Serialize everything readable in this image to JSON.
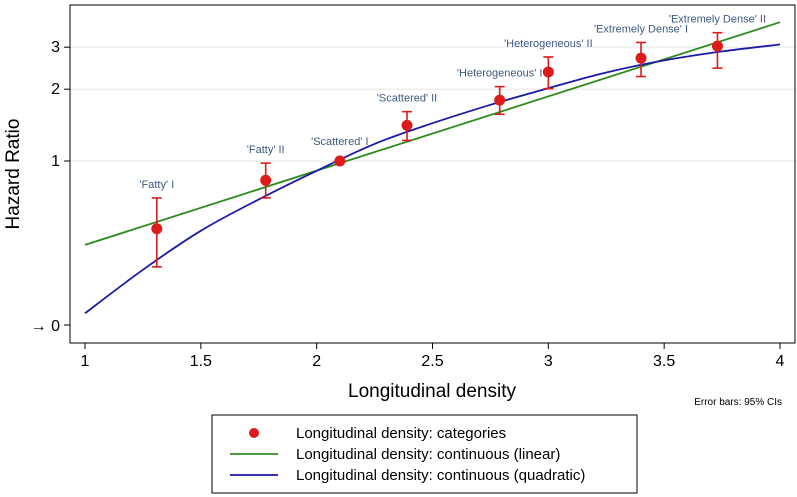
{
  "chart_data": {
    "type": "scatter",
    "xlabel": "Longitudinal density",
    "ylabel": "Hazard Ratio",
    "xlim": [
      1,
      4
    ],
    "x_ticks": [
      1,
      1.5,
      2,
      2.5,
      3,
      3.5,
      4
    ],
    "x_tick_labels": [
      "1",
      "1.5",
      "2",
      "2.5",
      "3",
      "3.5",
      "4"
    ],
    "y_scale": "log",
    "y_ticks": [
      1,
      2,
      3
    ],
    "y_tick_labels": [
      "1",
      "2",
      "3"
    ],
    "y_axis_break_label": "→ 0",
    "grid": "horizontal",
    "note": "Error bars: 95% CIs",
    "points": [
      {
        "label": "'Fatty' I",
        "x": 1.31,
        "y": 0.52,
        "lo": 0.36,
        "hi": 0.7
      },
      {
        "label": "'Fatty' II",
        "x": 1.78,
        "y": 0.83,
        "lo": 0.7,
        "hi": 0.98
      },
      {
        "label": "'Scattered' I",
        "x": 2.1,
        "y": 1.0,
        "lo": 1.0,
        "hi": 1.0
      },
      {
        "label": "'Scattered' II",
        "x": 2.39,
        "y": 1.41,
        "lo": 1.22,
        "hi": 1.61
      },
      {
        "label": "'Heterogeneous' I",
        "x": 2.79,
        "y": 1.8,
        "lo": 1.57,
        "hi": 2.05
      },
      {
        "label": "'Heterogeneous' II",
        "x": 3.0,
        "y": 2.36,
        "lo": 2.01,
        "hi": 2.73
      },
      {
        "label": "'Extremely Dense' I",
        "x": 3.4,
        "y": 2.7,
        "lo": 2.26,
        "hi": 3.14
      },
      {
        "label": "'Extremely Dense' II",
        "x": 3.73,
        "y": 3.03,
        "lo": 2.45,
        "hi": 3.45
      }
    ],
    "series": [
      {
        "name": "Longitudinal density: continuous (linear)",
        "color": "#2e8b1e",
        "x": [
          1,
          4
        ],
        "y": [
          0.445,
          3.82
        ]
      },
      {
        "name": "Longitudinal density: continuous (quadratic)",
        "color": "#1a1aa8",
        "x": [
          1,
          1.25,
          1.5,
          1.75,
          2,
          2.25,
          2.5,
          2.75,
          3,
          3.25,
          3.5,
          3.75,
          4
        ],
        "y": [
          0.23,
          0.35,
          0.51,
          0.69,
          0.91,
          1.18,
          1.44,
          1.72,
          2.02,
          2.35,
          2.64,
          2.88,
          3.08
        ]
      }
    ],
    "legend": [
      {
        "label": "Longitudinal density: categories",
        "kind": "point",
        "color": "#dd1b1b"
      },
      {
        "label": "Longitudinal density: continuous (linear)",
        "kind": "line",
        "color": "#2e8b1e"
      },
      {
        "label": "Longitudinal density: continuous (quadratic)",
        "kind": "line",
        "color": "#1a1aa8"
      }
    ],
    "legend_position": "bottom-center",
    "point_color": "#dd1b1b"
  }
}
